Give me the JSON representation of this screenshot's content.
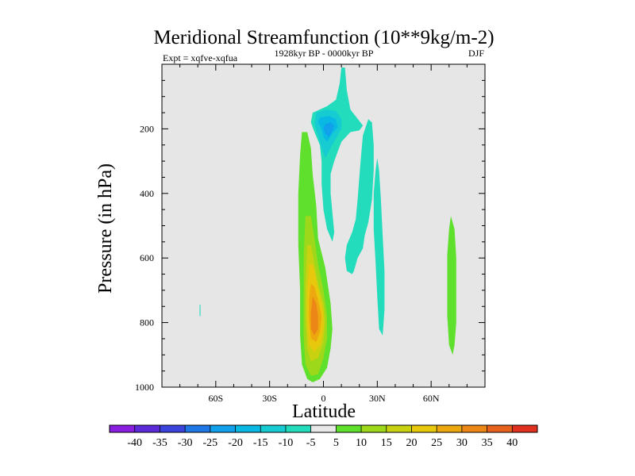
{
  "chart_data": {
    "type": "heatmap",
    "title": "Meridional Streamfunction (10**9kg/m-2)",
    "subtitle_left": "Expt = xqfve-xqfua",
    "subtitle_center": "1928kyr BP - 0000kyr BP",
    "subtitle_right": "DJF",
    "xlabel": "Latitude",
    "ylabel": "Pressure (in hPa)",
    "xlim": [
      -90,
      90
    ],
    "ylim": [
      1000,
      0
    ],
    "x_ticks": [
      {
        "value": -60,
        "label": "60S"
      },
      {
        "value": -30,
        "label": "30S"
      },
      {
        "value": 0,
        "label": "0"
      },
      {
        "value": 30,
        "label": "30N"
      },
      {
        "value": 60,
        "label": "60N"
      }
    ],
    "y_ticks": [
      {
        "value": 200,
        "label": "200"
      },
      {
        "value": 400,
        "label": "400"
      },
      {
        "value": 600,
        "label": "600"
      },
      {
        "value": 800,
        "label": "800"
      },
      {
        "value": 1000,
        "label": "1000"
      }
    ],
    "colorbar": {
      "labels": [
        "-40",
        "-35",
        "-30",
        "-25",
        "-20",
        "-15",
        "-10",
        "-5",
        "5",
        "10",
        "15",
        "20",
        "25",
        "30",
        "35",
        "40"
      ],
      "colors": [
        "#8a1ee0",
        "#5c2ad8",
        "#3a44dc",
        "#1f78e6",
        "#10a0ec",
        "#0ab8e4",
        "#16ccd2",
        "#22dcbc",
        "#e8e8e8",
        "#5ee02c",
        "#9ed81a",
        "#c8d210",
        "#e8c80c",
        "#eca80e",
        "#ec8616",
        "#e8621c",
        "#e03020"
      ]
    },
    "background_value": 0,
    "features": [
      {
        "name": "southern-positive-cell",
        "value_level": 5,
        "points": [
          [
            -12,
            210
          ],
          [
            -9,
            210
          ],
          [
            -7,
            260
          ],
          [
            -6,
            340
          ],
          [
            -4,
            440
          ],
          [
            -3,
            540
          ],
          [
            1,
            630
          ],
          [
            4,
            740
          ],
          [
            5,
            820
          ],
          [
            4,
            880
          ],
          [
            2,
            940
          ],
          [
            -2,
            975
          ],
          [
            -6,
            985
          ],
          [
            -9,
            975
          ],
          [
            -12,
            930
          ],
          [
            -13,
            840
          ],
          [
            -13,
            700
          ],
          [
            -14,
            560
          ],
          [
            -14,
            400
          ],
          [
            -13,
            280
          ]
        ]
      },
      {
        "name": "southern-positive-core-10",
        "value_level": 10,
        "points": [
          [
            -10,
            470
          ],
          [
            -7,
            470
          ],
          [
            -5,
            540
          ],
          [
            -3,
            620
          ],
          [
            0,
            700
          ],
          [
            2,
            780
          ],
          [
            2,
            850
          ],
          [
            0,
            910
          ],
          [
            -3,
            960
          ],
          [
            -7,
            965
          ],
          [
            -10,
            930
          ],
          [
            -11,
            850
          ],
          [
            -11,
            720
          ],
          [
            -11,
            590
          ]
        ]
      },
      {
        "name": "southern-positive-core-15",
        "value_level": 15,
        "points": [
          [
            -9,
            560
          ],
          [
            -7,
            560
          ],
          [
            -5,
            620
          ],
          [
            -3,
            680
          ],
          [
            0,
            740
          ],
          [
            1,
            800
          ],
          [
            0,
            860
          ],
          [
            -3,
            910
          ],
          [
            -7,
            920
          ],
          [
            -9,
            880
          ],
          [
            -10,
            790
          ],
          [
            -10,
            680
          ]
        ]
      },
      {
        "name": "southern-positive-core-20",
        "value_level": 20,
        "points": [
          [
            -8,
            620
          ],
          [
            -6,
            620
          ],
          [
            -4,
            670
          ],
          [
            -2,
            720
          ],
          [
            0,
            770
          ],
          [
            0,
            820
          ],
          [
            -2,
            870
          ],
          [
            -5,
            890
          ],
          [
            -8,
            870
          ],
          [
            -9,
            800
          ],
          [
            -9,
            700
          ]
        ]
      },
      {
        "name": "southern-positive-core-25",
        "value_level": 25,
        "points": [
          [
            -7,
            680
          ],
          [
            -5,
            690
          ],
          [
            -3,
            730
          ],
          [
            -1,
            780
          ],
          [
            -2,
            830
          ],
          [
            -4,
            860
          ],
          [
            -7,
            850
          ],
          [
            -8,
            790
          ],
          [
            -8,
            730
          ]
        ]
      },
      {
        "name": "southern-positive-core-30",
        "value_level": 30,
        "points": [
          [
            -6,
            720
          ],
          [
            -4,
            740
          ],
          [
            -3,
            780
          ],
          [
            -3,
            820
          ],
          [
            -5,
            840
          ],
          [
            -7,
            820
          ],
          [
            -7,
            770
          ]
        ]
      },
      {
        "name": "northern-positive-cell",
        "value_level": 5,
        "points": [
          [
            71,
            470
          ],
          [
            73,
            510
          ],
          [
            74,
            600
          ],
          [
            74,
            700
          ],
          [
            74,
            800
          ],
          [
            73,
            870
          ],
          [
            72,
            900
          ],
          [
            70,
            870
          ],
          [
            69,
            780
          ],
          [
            69,
            680
          ],
          [
            69,
            590
          ],
          [
            70,
            510
          ]
        ]
      },
      {
        "name": "upper-negative-cell",
        "value_level": -5,
        "points": [
          [
            10,
            10
          ],
          [
            12,
            10
          ],
          [
            13,
            80
          ],
          [
            15,
            140
          ],
          [
            22,
            190
          ],
          [
            20,
            205
          ],
          [
            15,
            210
          ],
          [
            10,
            240
          ],
          [
            8,
            270
          ],
          [
            6,
            300
          ],
          [
            4,
            340
          ],
          [
            4,
            400
          ],
          [
            5,
            460
          ],
          [
            6,
            520
          ],
          [
            5,
            550
          ],
          [
            2,
            510
          ],
          [
            0,
            450
          ],
          [
            -1,
            370
          ],
          [
            -1,
            300
          ],
          [
            -2,
            250
          ],
          [
            -5,
            210
          ],
          [
            -7,
            180
          ],
          [
            -6,
            150
          ],
          [
            -2,
            140
          ],
          [
            2,
            130
          ],
          [
            7,
            110
          ],
          [
            9,
            60
          ]
        ]
      },
      {
        "name": "upper-negative-core-10",
        "value_level": -10,
        "points": [
          [
            -4,
            150
          ],
          [
            2,
            140
          ],
          [
            7,
            145
          ],
          [
            10,
            170
          ],
          [
            10,
            200
          ],
          [
            7,
            230
          ],
          [
            4,
            260
          ],
          [
            1,
            290
          ],
          [
            -1,
            260
          ],
          [
            -3,
            220
          ],
          [
            -5,
            185
          ]
        ]
      },
      {
        "name": "upper-negative-core-15",
        "value_level": -15,
        "points": [
          [
            -2,
            165
          ],
          [
            3,
            160
          ],
          [
            7,
            170
          ],
          [
            8,
            195
          ],
          [
            5,
            215
          ],
          [
            2,
            240
          ],
          [
            0,
            225
          ],
          [
            -1,
            200
          ],
          [
            -3,
            180
          ]
        ]
      },
      {
        "name": "upper-negative-core-20",
        "value_level": -20,
        "points": [
          [
            1,
            185
          ],
          [
            4,
            180
          ],
          [
            6,
            190
          ],
          [
            5,
            205
          ],
          [
            3,
            225
          ],
          [
            1,
            215
          ],
          [
            0,
            200
          ]
        ]
      },
      {
        "name": "northern-negative-streak-a",
        "value_level": -5,
        "points": [
          [
            25,
            170
          ],
          [
            27,
            180
          ],
          [
            28,
            250
          ],
          [
            28,
            330
          ],
          [
            27,
            420
          ],
          [
            25,
            490
          ],
          [
            23,
            530
          ],
          [
            22,
            570
          ],
          [
            19,
            600
          ],
          [
            17,
            640
          ],
          [
            16,
            650
          ],
          [
            13,
            640
          ],
          [
            12,
            600
          ],
          [
            13,
            560
          ],
          [
            16,
            520
          ],
          [
            18,
            480
          ],
          [
            19,
            420
          ],
          [
            20,
            350
          ],
          [
            21,
            280
          ],
          [
            22,
            220
          ]
        ]
      },
      {
        "name": "northern-negative-streak-b",
        "value_level": -5,
        "points": [
          [
            30,
            290
          ],
          [
            31,
            330
          ],
          [
            32,
            420
          ],
          [
            33,
            530
          ],
          [
            34,
            640
          ],
          [
            34,
            760
          ],
          [
            33,
            840
          ],
          [
            31,
            820
          ],
          [
            30,
            720
          ],
          [
            29,
            610
          ],
          [
            28,
            510
          ],
          [
            28,
            400
          ],
          [
            29,
            330
          ]
        ]
      },
      {
        "name": "southern-negative-speck",
        "value_level": -5,
        "points": [
          [
            -69,
            745
          ],
          [
            -68.5,
            745
          ],
          [
            -68.5,
            780
          ],
          [
            -69,
            780
          ]
        ]
      }
    ]
  }
}
